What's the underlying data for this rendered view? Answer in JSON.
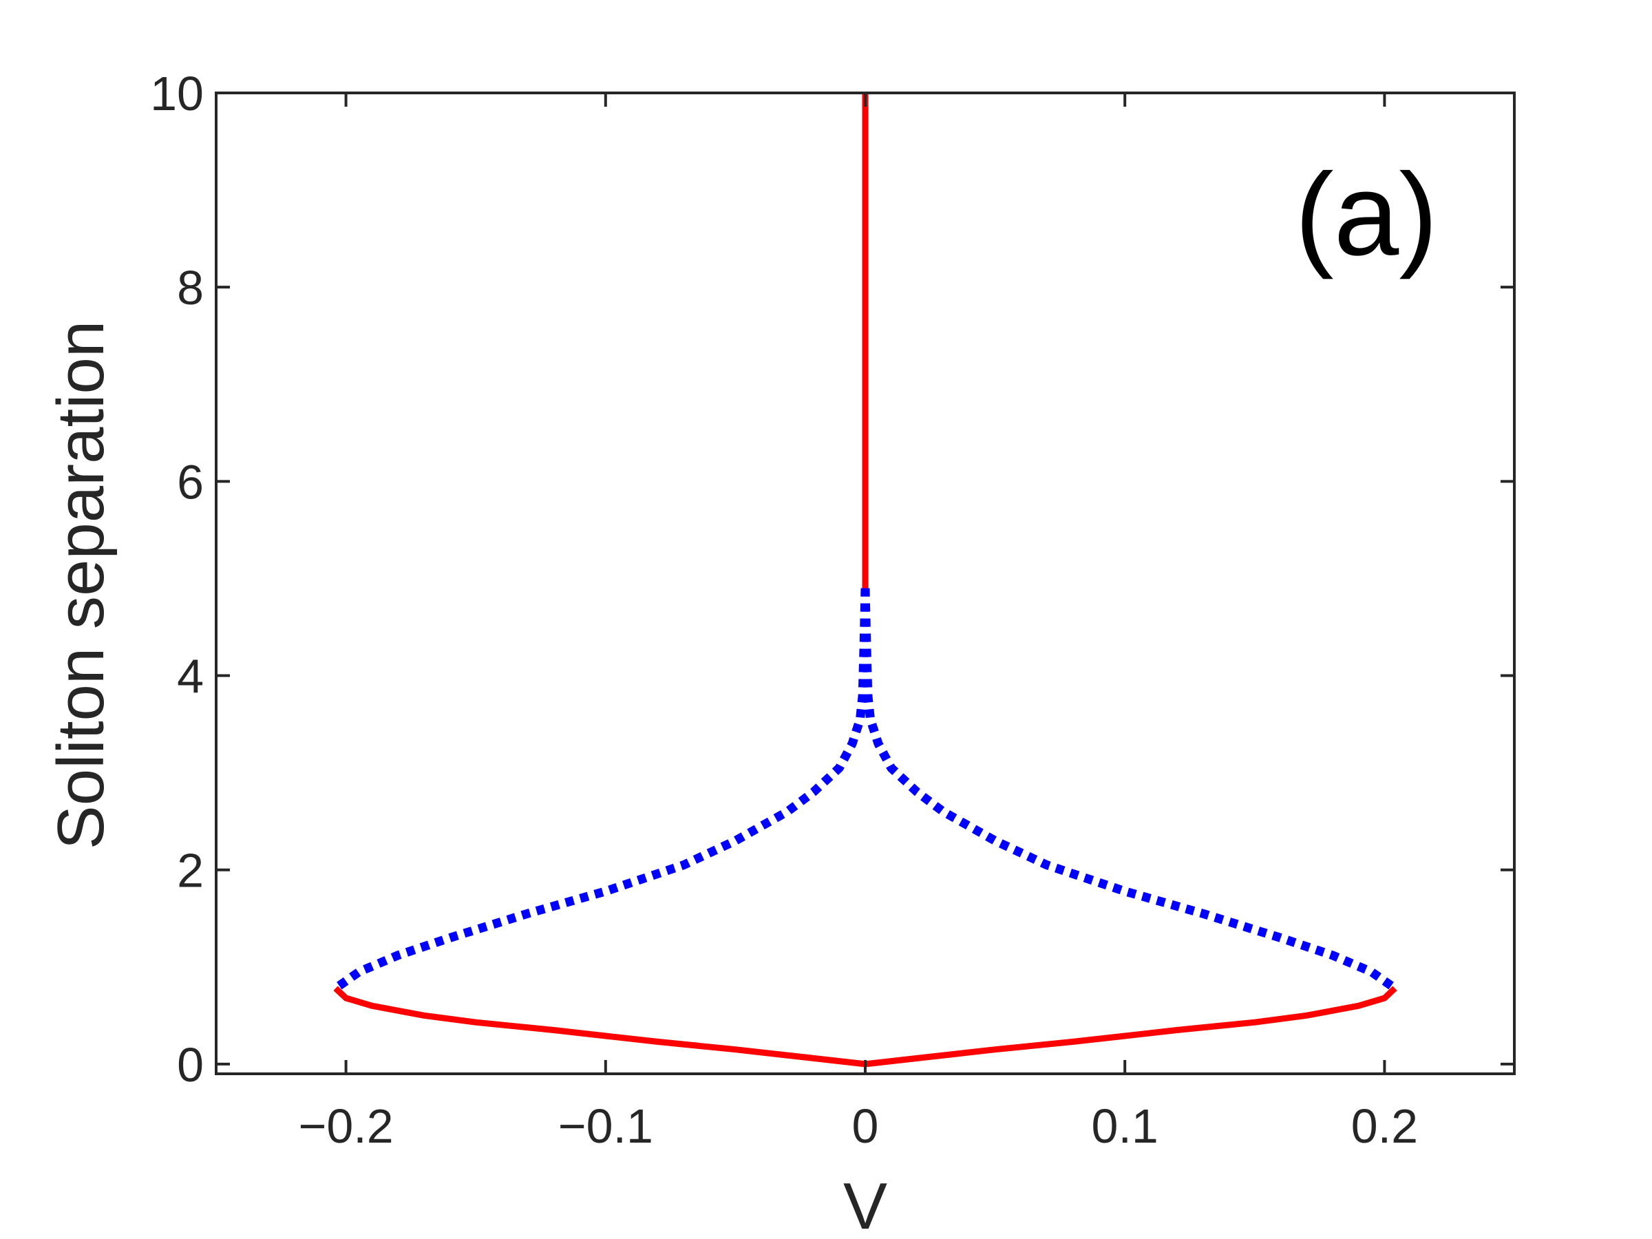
{
  "chart_data": {
    "type": "line",
    "title": "",
    "xlabel": "V",
    "ylabel": "Soliton separation",
    "xlim": [
      -0.25,
      0.25
    ],
    "ylim": [
      -0.1,
      10
    ],
    "x_ticks": [
      -0.2,
      -0.1,
      0,
      0.1,
      0.2
    ],
    "x_tick_labels": [
      "−0.2",
      "−0.1",
      "0",
      "0.1",
      "0.2"
    ],
    "y_ticks": [
      0,
      2,
      4,
      6,
      8,
      10
    ],
    "y_tick_labels": [
      "0",
      "2",
      "4",
      "6",
      "8",
      "10"
    ],
    "grid": false,
    "annotation": "(a)",
    "colors": {
      "stable": "#ff0000",
      "unstable": "#0000ff",
      "axes": "#262626"
    },
    "series": [
      {
        "style": "solid",
        "color": "#ff0000",
        "x": [
          0,
          0,
          0,
          0,
          0,
          0
        ],
        "y": [
          10,
          8,
          6.5,
          5.5,
          5.0,
          4.9
        ]
      },
      {
        "style": "dotted",
        "color": "#0000ff",
        "x": [
          0,
          0.0005,
          0.001,
          0.002,
          0.005,
          0.01,
          0.02,
          0.03,
          0.04,
          0.05,
          0.07,
          0.1,
          0.13,
          0.16,
          0.18,
          0.195,
          0.204
        ],
        "y": [
          4.9,
          4.3,
          3.8,
          3.55,
          3.3,
          3.05,
          2.8,
          2.6,
          2.45,
          2.3,
          2.05,
          1.78,
          1.55,
          1.3,
          1.12,
          0.95,
          0.78
        ]
      },
      {
        "style": "dotted",
        "color": "#0000ff",
        "x": [
          0,
          -0.0005,
          -0.001,
          -0.002,
          -0.005,
          -0.01,
          -0.02,
          -0.03,
          -0.04,
          -0.05,
          -0.07,
          -0.1,
          -0.13,
          -0.16,
          -0.18,
          -0.195,
          -0.204
        ],
        "y": [
          4.9,
          4.3,
          3.8,
          3.55,
          3.3,
          3.05,
          2.8,
          2.6,
          2.45,
          2.3,
          2.05,
          1.78,
          1.55,
          1.3,
          1.12,
          0.95,
          0.78
        ]
      },
      {
        "style": "solid",
        "color": "#ff0000",
        "x": [
          -0.204,
          -0.2,
          -0.19,
          -0.17,
          -0.15,
          -0.12,
          -0.1,
          -0.08,
          -0.05,
          -0.02,
          0,
          0.02,
          0.05,
          0.08,
          0.1,
          0.12,
          0.15,
          0.17,
          0.19,
          0.2,
          0.204
        ],
        "y": [
          0.78,
          0.68,
          0.6,
          0.5,
          0.43,
          0.35,
          0.29,
          0.23,
          0.15,
          0.06,
          0,
          0.06,
          0.15,
          0.23,
          0.29,
          0.35,
          0.43,
          0.5,
          0.6,
          0.68,
          0.78
        ]
      }
    ]
  }
}
